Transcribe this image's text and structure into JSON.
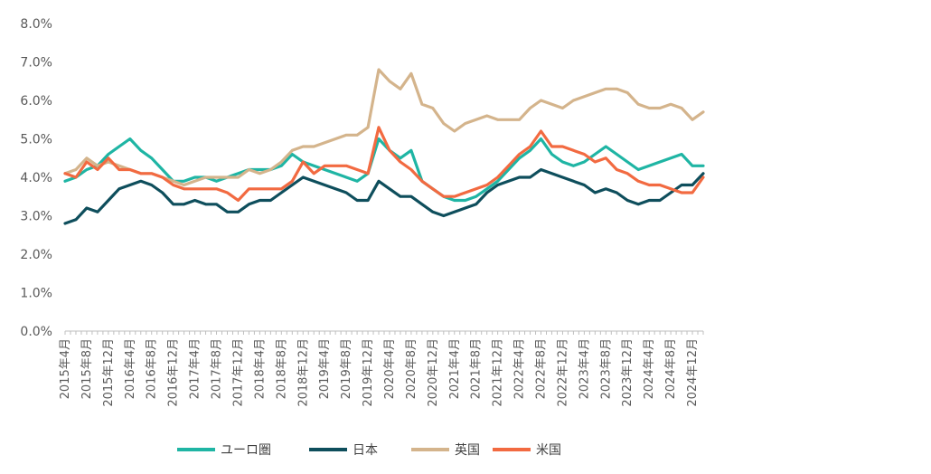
{
  "chart_data": {
    "type": "line",
    "title": "",
    "xlabel": "",
    "ylabel": "",
    "ylim": [
      0,
      0.08
    ],
    "y_ticks": [
      0,
      0.01,
      0.02,
      0.03,
      0.04,
      0.05,
      0.06,
      0.07,
      0.08
    ],
    "y_tick_labels": [
      "0.0%",
      "1.0%",
      "2.0%",
      "3.0%",
      "4.0%",
      "5.0%",
      "6.0%",
      "7.0%",
      "8.0%"
    ],
    "x_start": "2015-04",
    "x_end": "2025-02",
    "x_tick_labels": [
      "2015年4月",
      "2015年8月",
      "2015年12月",
      "2016年4月",
      "2016年8月",
      "2016年12月",
      "2017年4月",
      "2017年8月",
      "2017年12月",
      "2018年4月",
      "2018年8月",
      "2018年12月",
      "2019年4月",
      "2019年8月",
      "2019年12月",
      "2020年4月",
      "2020年8月",
      "2020年12月",
      "2021年4月",
      "2021年8月",
      "2021年12月",
      "2022年4月",
      "2022年8月",
      "2022年12月",
      "2023年4月",
      "2023年8月",
      "2023年12月",
      "2024年4月",
      "2024年8月",
      "2024年12月"
    ],
    "grid": false,
    "legend_position": "bottom",
    "series": [
      {
        "name": "ユーロ圏",
        "color": "#1FB5A4",
        "points": [
          [
            "2015-04",
            0.039
          ],
          [
            "2015-06",
            0.04
          ],
          [
            "2015-08",
            0.042
          ],
          [
            "2015-10",
            0.043
          ],
          [
            "2015-12",
            0.046
          ],
          [
            "2016-02",
            0.048
          ],
          [
            "2016-04",
            0.05
          ],
          [
            "2016-06",
            0.047
          ],
          [
            "2016-08",
            0.045
          ],
          [
            "2016-10",
            0.042
          ],
          [
            "2016-12",
            0.039
          ],
          [
            "2017-02",
            0.039
          ],
          [
            "2017-04",
            0.04
          ],
          [
            "2017-06",
            0.04
          ],
          [
            "2017-08",
            0.039
          ],
          [
            "2017-10",
            0.04
          ],
          [
            "2017-12",
            0.041
          ],
          [
            "2018-02",
            0.042
          ],
          [
            "2018-04",
            0.042
          ],
          [
            "2018-06",
            0.042
          ],
          [
            "2018-08",
            0.043
          ],
          [
            "2018-10",
            0.046
          ],
          [
            "2018-12",
            0.044
          ],
          [
            "2019-02",
            0.043
          ],
          [
            "2019-04",
            0.042
          ],
          [
            "2019-06",
            0.041
          ],
          [
            "2019-08",
            0.04
          ],
          [
            "2019-10",
            0.039
          ],
          [
            "2019-12",
            0.041
          ],
          [
            "2020-02",
            0.05
          ],
          [
            "2020-04",
            0.047
          ],
          [
            "2020-06",
            0.045
          ],
          [
            "2020-08",
            0.047
          ],
          [
            "2020-10",
            0.039
          ],
          [
            "2020-12",
            0.037
          ],
          [
            "2021-02",
            0.035
          ],
          [
            "2021-04",
            0.034
          ],
          [
            "2021-06",
            0.034
          ],
          [
            "2021-08",
            0.035
          ],
          [
            "2021-10",
            0.037
          ],
          [
            "2021-12",
            0.039
          ],
          [
            "2022-02",
            0.042
          ],
          [
            "2022-04",
            0.045
          ],
          [
            "2022-06",
            0.047
          ],
          [
            "2022-08",
            0.05
          ],
          [
            "2022-10",
            0.046
          ],
          [
            "2022-12",
            0.044
          ],
          [
            "2023-02",
            0.043
          ],
          [
            "2023-04",
            0.044
          ],
          [
            "2023-06",
            0.046
          ],
          [
            "2023-08",
            0.048
          ],
          [
            "2023-10",
            0.046
          ],
          [
            "2023-12",
            0.044
          ],
          [
            "2024-02",
            0.042
          ],
          [
            "2024-04",
            0.043
          ],
          [
            "2024-06",
            0.044
          ],
          [
            "2024-08",
            0.045
          ],
          [
            "2024-10",
            0.046
          ],
          [
            "2024-12",
            0.043
          ],
          [
            "2025-02",
            0.043
          ]
        ]
      },
      {
        "name": "日本",
        "color": "#0E4E5C",
        "points": [
          [
            "2015-04",
            0.028
          ],
          [
            "2015-06",
            0.029
          ],
          [
            "2015-08",
            0.032
          ],
          [
            "2015-10",
            0.031
          ],
          [
            "2015-12",
            0.034
          ],
          [
            "2016-02",
            0.037
          ],
          [
            "2016-04",
            0.038
          ],
          [
            "2016-06",
            0.039
          ],
          [
            "2016-08",
            0.038
          ],
          [
            "2016-10",
            0.036
          ],
          [
            "2016-12",
            0.033
          ],
          [
            "2017-02",
            0.033
          ],
          [
            "2017-04",
            0.034
          ],
          [
            "2017-06",
            0.033
          ],
          [
            "2017-08",
            0.033
          ],
          [
            "2017-10",
            0.031
          ],
          [
            "2017-12",
            0.031
          ],
          [
            "2018-02",
            0.033
          ],
          [
            "2018-04",
            0.034
          ],
          [
            "2018-06",
            0.034
          ],
          [
            "2018-08",
            0.036
          ],
          [
            "2018-10",
            0.038
          ],
          [
            "2018-12",
            0.04
          ],
          [
            "2019-02",
            0.039
          ],
          [
            "2019-04",
            0.038
          ],
          [
            "2019-06",
            0.037
          ],
          [
            "2019-08",
            0.036
          ],
          [
            "2019-10",
            0.034
          ],
          [
            "2019-12",
            0.034
          ],
          [
            "2020-02",
            0.039
          ],
          [
            "2020-04",
            0.037
          ],
          [
            "2020-06",
            0.035
          ],
          [
            "2020-08",
            0.035
          ],
          [
            "2020-10",
            0.033
          ],
          [
            "2020-12",
            0.031
          ],
          [
            "2021-02",
            0.03
          ],
          [
            "2021-04",
            0.031
          ],
          [
            "2021-06",
            0.032
          ],
          [
            "2021-08",
            0.033
          ],
          [
            "2021-10",
            0.036
          ],
          [
            "2021-12",
            0.038
          ],
          [
            "2022-02",
            0.039
          ],
          [
            "2022-04",
            0.04
          ],
          [
            "2022-06",
            0.04
          ],
          [
            "2022-08",
            0.042
          ],
          [
            "2022-10",
            0.041
          ],
          [
            "2022-12",
            0.04
          ],
          [
            "2023-02",
            0.039
          ],
          [
            "2023-04",
            0.038
          ],
          [
            "2023-06",
            0.036
          ],
          [
            "2023-08",
            0.037
          ],
          [
            "2023-10",
            0.036
          ],
          [
            "2023-12",
            0.034
          ],
          [
            "2024-02",
            0.033
          ],
          [
            "2024-04",
            0.034
          ],
          [
            "2024-06",
            0.034
          ],
          [
            "2024-08",
            0.036
          ],
          [
            "2024-10",
            0.038
          ],
          [
            "2024-12",
            0.038
          ],
          [
            "2025-02",
            0.041
          ]
        ]
      },
      {
        "name": "英国",
        "color": "#D4B48C",
        "points": [
          [
            "2015-04",
            0.041
          ],
          [
            "2015-06",
            0.042
          ],
          [
            "2015-08",
            0.045
          ],
          [
            "2015-10",
            0.043
          ],
          [
            "2015-12",
            0.044
          ],
          [
            "2016-02",
            0.043
          ],
          [
            "2016-04",
            0.042
          ],
          [
            "2016-06",
            0.041
          ],
          [
            "2016-08",
            0.041
          ],
          [
            "2016-10",
            0.04
          ],
          [
            "2016-12",
            0.039
          ],
          [
            "2017-02",
            0.038
          ],
          [
            "2017-04",
            0.039
          ],
          [
            "2017-06",
            0.04
          ],
          [
            "2017-08",
            0.04
          ],
          [
            "2017-10",
            0.04
          ],
          [
            "2017-12",
            0.04
          ],
          [
            "2018-02",
            0.042
          ],
          [
            "2018-04",
            0.041
          ],
          [
            "2018-06",
            0.042
          ],
          [
            "2018-08",
            0.044
          ],
          [
            "2018-10",
            0.047
          ],
          [
            "2018-12",
            0.048
          ],
          [
            "2019-02",
            0.048
          ],
          [
            "2019-04",
            0.049
          ],
          [
            "2019-06",
            0.05
          ],
          [
            "2019-08",
            0.051
          ],
          [
            "2019-10",
            0.051
          ],
          [
            "2019-12",
            0.053
          ],
          [
            "2020-02",
            0.068
          ],
          [
            "2020-04",
            0.065
          ],
          [
            "2020-06",
            0.063
          ],
          [
            "2020-08",
            0.067
          ],
          [
            "2020-10",
            0.059
          ],
          [
            "2020-12",
            0.058
          ],
          [
            "2021-02",
            0.054
          ],
          [
            "2021-04",
            0.052
          ],
          [
            "2021-06",
            0.054
          ],
          [
            "2021-08",
            0.055
          ],
          [
            "2021-10",
            0.056
          ],
          [
            "2021-12",
            0.055
          ],
          [
            "2022-02",
            0.055
          ],
          [
            "2022-04",
            0.055
          ],
          [
            "2022-06",
            0.058
          ],
          [
            "2022-08",
            0.06
          ],
          [
            "2022-10",
            0.059
          ],
          [
            "2022-12",
            0.058
          ],
          [
            "2023-02",
            0.06
          ],
          [
            "2023-04",
            0.061
          ],
          [
            "2023-06",
            0.062
          ],
          [
            "2023-08",
            0.063
          ],
          [
            "2023-10",
            0.063
          ],
          [
            "2023-12",
            0.062
          ],
          [
            "2024-02",
            0.059
          ],
          [
            "2024-04",
            0.058
          ],
          [
            "2024-06",
            0.058
          ],
          [
            "2024-08",
            0.059
          ],
          [
            "2024-10",
            0.058
          ],
          [
            "2024-12",
            0.055
          ],
          [
            "2025-02",
            0.057
          ]
        ]
      },
      {
        "name": "米国",
        "color": "#F26A41",
        "points": [
          [
            "2015-04",
            0.041
          ],
          [
            "2015-06",
            0.04
          ],
          [
            "2015-08",
            0.044
          ],
          [
            "2015-10",
            0.042
          ],
          [
            "2015-12",
            0.045
          ],
          [
            "2016-02",
            0.042
          ],
          [
            "2016-04",
            0.042
          ],
          [
            "2016-06",
            0.041
          ],
          [
            "2016-08",
            0.041
          ],
          [
            "2016-10",
            0.04
          ],
          [
            "2016-12",
            0.038
          ],
          [
            "2017-02",
            0.037
          ],
          [
            "2017-04",
            0.037
          ],
          [
            "2017-06",
            0.037
          ],
          [
            "2017-08",
            0.037
          ],
          [
            "2017-10",
            0.036
          ],
          [
            "2017-12",
            0.034
          ],
          [
            "2018-02",
            0.037
          ],
          [
            "2018-04",
            0.037
          ],
          [
            "2018-06",
            0.037
          ],
          [
            "2018-08",
            0.037
          ],
          [
            "2018-10",
            0.039
          ],
          [
            "2018-12",
            0.044
          ],
          [
            "2019-02",
            0.041
          ],
          [
            "2019-04",
            0.043
          ],
          [
            "2019-06",
            0.043
          ],
          [
            "2019-08",
            0.043
          ],
          [
            "2019-10",
            0.042
          ],
          [
            "2019-12",
            0.041
          ],
          [
            "2020-02",
            0.053
          ],
          [
            "2020-04",
            0.047
          ],
          [
            "2020-06",
            0.044
          ],
          [
            "2020-08",
            0.042
          ],
          [
            "2020-10",
            0.039
          ],
          [
            "2020-12",
            0.037
          ],
          [
            "2021-02",
            0.035
          ],
          [
            "2021-04",
            0.035
          ],
          [
            "2021-06",
            0.036
          ],
          [
            "2021-08",
            0.037
          ],
          [
            "2021-10",
            0.038
          ],
          [
            "2021-12",
            0.04
          ],
          [
            "2022-02",
            0.043
          ],
          [
            "2022-04",
            0.046
          ],
          [
            "2022-06",
            0.048
          ],
          [
            "2022-08",
            0.052
          ],
          [
            "2022-10",
            0.048
          ],
          [
            "2022-12",
            0.048
          ],
          [
            "2023-02",
            0.047
          ],
          [
            "2023-04",
            0.046
          ],
          [
            "2023-06",
            0.044
          ],
          [
            "2023-08",
            0.045
          ],
          [
            "2023-10",
            0.042
          ],
          [
            "2023-12",
            0.041
          ],
          [
            "2024-02",
            0.039
          ],
          [
            "2024-04",
            0.038
          ],
          [
            "2024-06",
            0.038
          ],
          [
            "2024-08",
            0.037
          ],
          [
            "2024-10",
            0.036
          ],
          [
            "2024-12",
            0.036
          ],
          [
            "2025-02",
            0.04
          ]
        ]
      }
    ]
  }
}
